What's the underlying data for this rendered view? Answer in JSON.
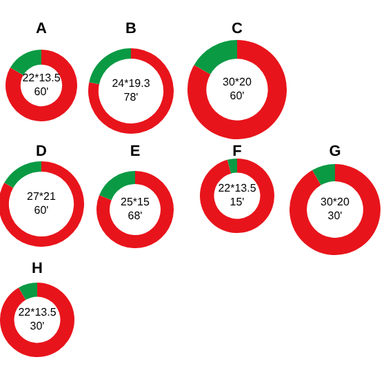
{
  "chart_data": [
    {
      "type": "donut",
      "title": "A",
      "categories": [
        null,
        null
      ],
      "values": [
        83.3,
        16.7
      ],
      "colors": [
        "#e8141b",
        "#0a9a44"
      ],
      "annotations": [
        "22*13.5",
        "60'"
      ]
    },
    {
      "type": "donut",
      "title": "B",
      "categories": [
        null,
        null
      ],
      "values": [
        78.3,
        21.7
      ],
      "colors": [
        "#e8141b",
        "#0a9a44"
      ],
      "annotations": [
        "24*19.3",
        "78'"
      ]
    },
    {
      "type": "donut",
      "title": "C",
      "categories": [
        null,
        null
      ],
      "values": [
        83.3,
        16.7
      ],
      "colors": [
        "#e8141b",
        "#0a9a44"
      ],
      "annotations": [
        "30*20",
        "60'"
      ]
    },
    {
      "type": "donut",
      "title": "D",
      "categories": [
        null,
        null
      ],
      "values": [
        83.3,
        16.7
      ],
      "colors": [
        "#e8141b",
        "#0a9a44"
      ],
      "annotations": [
        "27*21",
        "60'"
      ]
    },
    {
      "type": "donut",
      "title": "E",
      "categories": [
        null,
        null
      ],
      "values": [
        81.1,
        18.9
      ],
      "colors": [
        "#e8141b",
        "#0a9a44"
      ],
      "annotations": [
        "25*15",
        "68'"
      ]
    },
    {
      "type": "donut",
      "title": "F",
      "categories": [
        null,
        null
      ],
      "values": [
        95.8,
        4.2
      ],
      "colors": [
        "#e8141b",
        "#0a9a44"
      ],
      "annotations": [
        "22*13.5",
        "15'"
      ]
    },
    {
      "type": "donut",
      "title": "G",
      "categories": [
        null,
        null
      ],
      "values": [
        91.7,
        8.3
      ],
      "colors": [
        "#e8141b",
        "#0a9a44"
      ],
      "annotations": [
        "30*20",
        "30'"
      ]
    },
    {
      "type": "donut",
      "title": "H",
      "categories": [
        null,
        null
      ],
      "values": [
        91.7,
        8.3
      ],
      "colors": [
        "#e8141b",
        "#0a9a44"
      ],
      "annotations": [
        "22*13.5",
        "30'"
      ]
    }
  ]
}
